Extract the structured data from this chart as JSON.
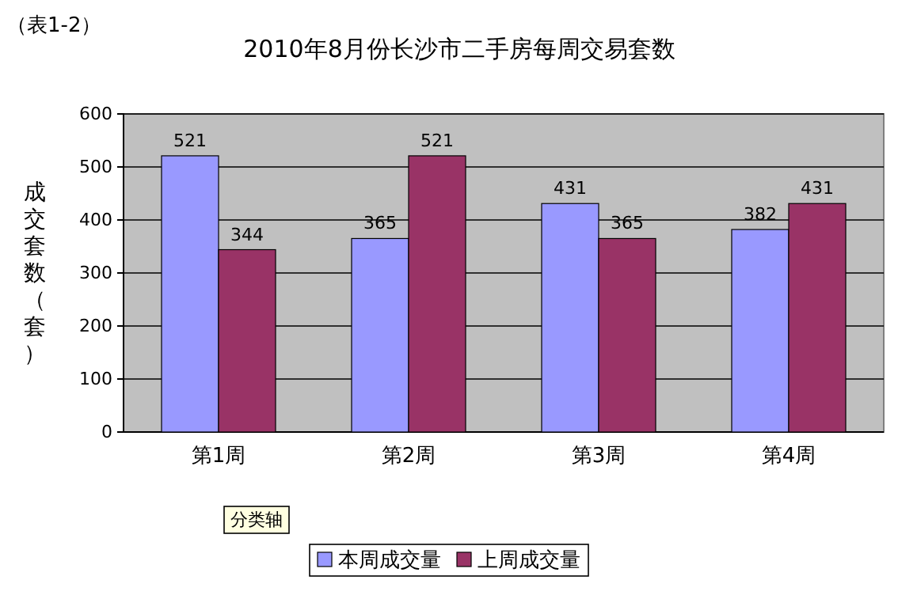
{
  "chart_data": {
    "type": "bar",
    "title": "2010年8月份长沙市二手房每周交易套数",
    "ylabel": "成交套数（套）",
    "annotations": [
      "（表1-2）",
      "分类轴"
    ],
    "categories": [
      "第1周",
      "第2周",
      "第3周",
      "第4周"
    ],
    "series": [
      {
        "name": "本周成交量",
        "color": "#9999ff",
        "values": [
          521,
          365,
          431,
          382
        ]
      },
      {
        "name": "上周成交量",
        "color": "#993366",
        "values": [
          344,
          521,
          365,
          431
        ]
      }
    ],
    "ylim": [
      0,
      600
    ],
    "yticks": [
      0,
      100,
      200,
      300,
      400,
      500,
      600
    ],
    "grid": "y",
    "data_labels": true,
    "legend": "bottom"
  }
}
